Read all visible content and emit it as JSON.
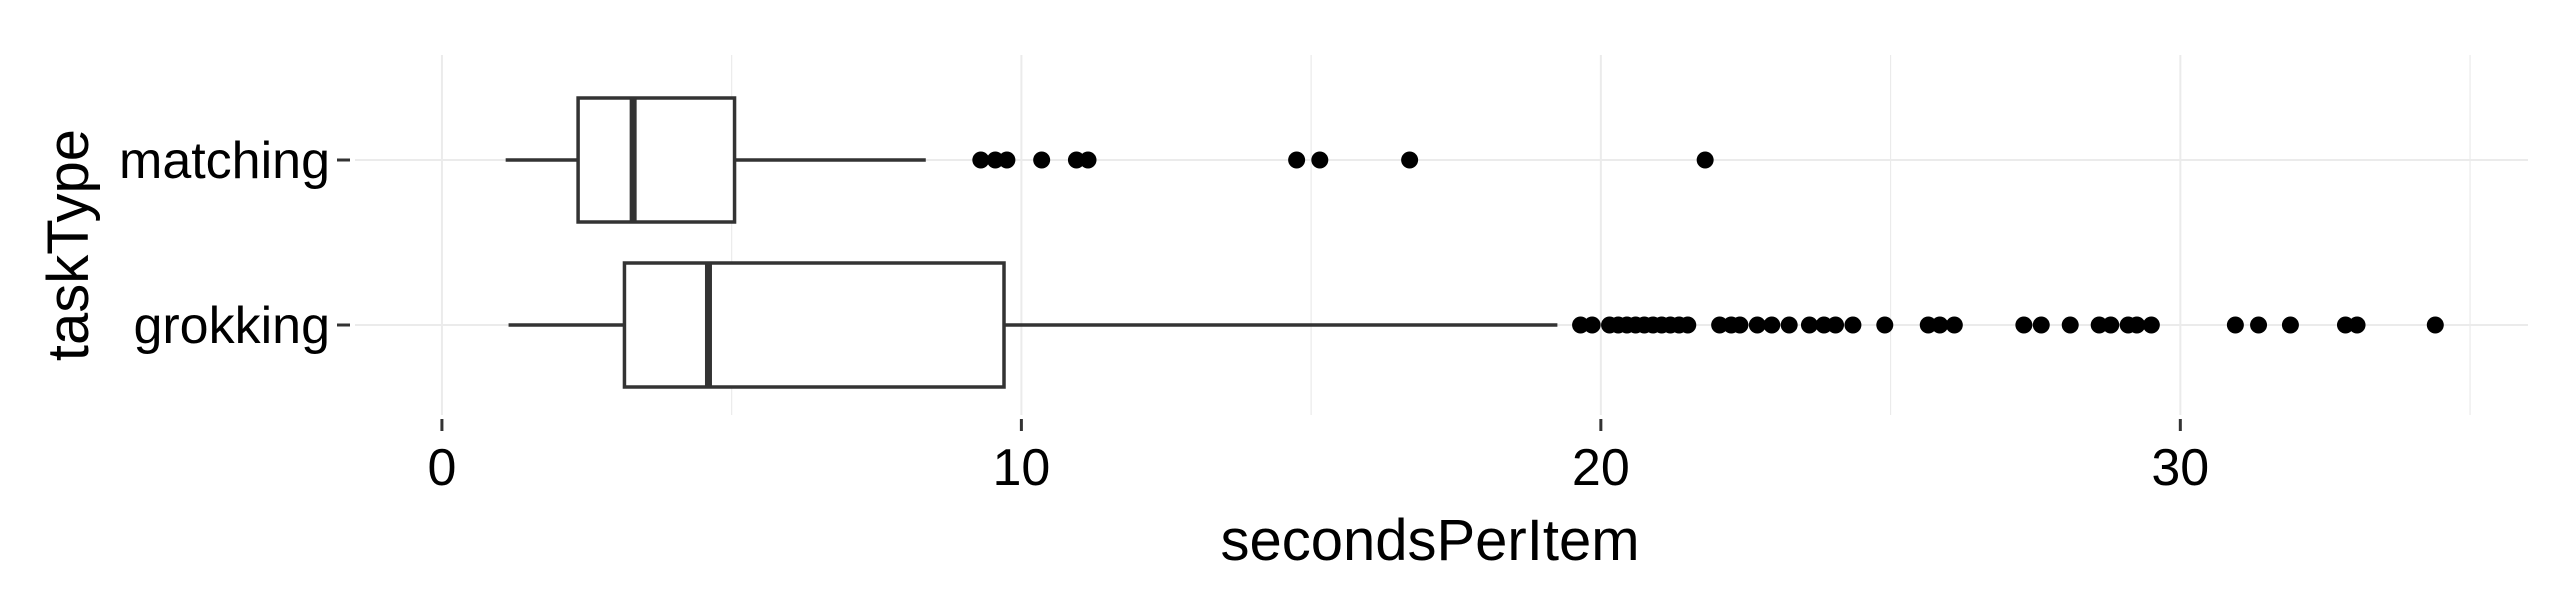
{
  "chart_data": {
    "type": "boxplot",
    "orientation": "horizontal",
    "title": "",
    "xlabel": "secondsPerItem",
    "ylabel": "taskType",
    "xlim": [
      -1.5,
      36
    ],
    "x_ticks": [
      0,
      10,
      20,
      30
    ],
    "x_tick_labels": [
      "0",
      "10",
      "20",
      "30"
    ],
    "categories": [
      "matching",
      "grokking"
    ],
    "grid": true,
    "background": "#ffffff",
    "grid_color": "#ebebeb",
    "box_stroke_color": "#333333",
    "point_color": "#000000",
    "series": [
      {
        "category": "matching",
        "whisker_low": 1.1,
        "q1": 2.35,
        "median": 3.3,
        "q3": 5.05,
        "whisker_high": 8.35,
        "outliers": [
          9.3,
          9.55,
          9.75,
          10.35,
          10.95,
          11.15,
          14.75,
          15.15,
          16.7,
          21.8
        ]
      },
      {
        "category": "grokking",
        "whisker_low": 1.15,
        "q1": 3.15,
        "median": 4.6,
        "q3": 9.7,
        "whisker_high": 19.25,
        "outliers": [
          19.65,
          19.85,
          20.15,
          20.3,
          20.45,
          20.6,
          20.75,
          20.9,
          21.05,
          21.2,
          21.35,
          21.5,
          22.05,
          22.25,
          22.4,
          22.7,
          22.95,
          23.25,
          23.6,
          23.85,
          24.05,
          24.35,
          24.9,
          25.65,
          25.85,
          26.1,
          27.3,
          27.6,
          28.1,
          28.6,
          28.8,
          29.1,
          29.25,
          29.5,
          30.95,
          31.35,
          31.9,
          32.85,
          33.05,
          34.4
        ]
      }
    ]
  }
}
